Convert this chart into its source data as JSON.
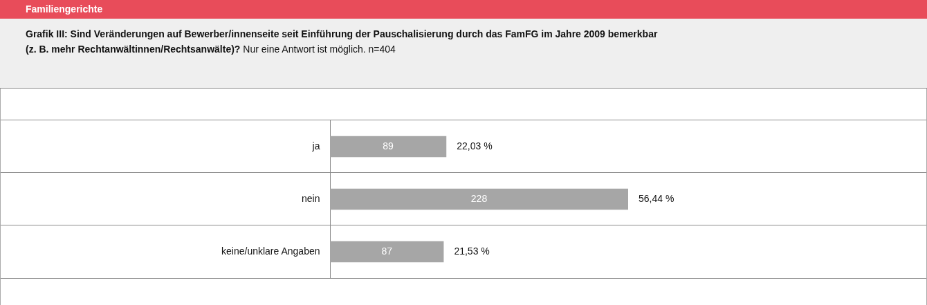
{
  "chart_data": {
    "type": "bar",
    "orientation": "horizontal",
    "title": "Familiengerichte",
    "subtitle": "Grafik III: Sind Veränderungen auf Bewerber/innenseite seit Einführung der Pauschalisierung durch das FamFG im Jahre 2009 bemerkbar (z. B. mehr Rechtanwältinnen/Rechtsanwälte)?",
    "annotations": [
      "Nur eine Antwort ist möglich. n=404",
      "89",
      "228",
      "87"
    ],
    "categories": [
      "ja",
      "nein",
      "keine/unklare Angaben"
    ],
    "values": [
      22.03,
      56.44,
      21.53
    ],
    "color": "#a6a6a6",
    "value_labels": [
      "22,03 %",
      "56,44 %",
      "21,53 %"
    ]
  }
}
